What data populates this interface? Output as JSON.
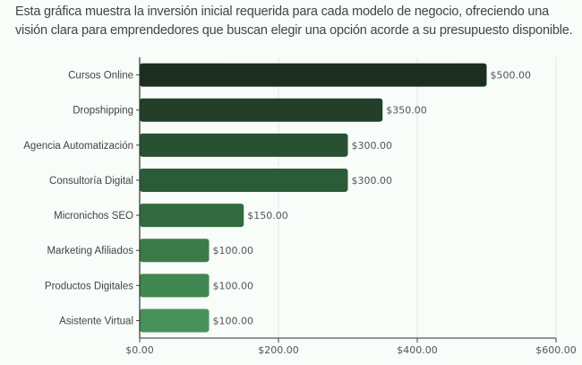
{
  "description": "Esta gráfica muestra la inversión inicial requerida para cada modelo de negocio, ofreciendo una visión clara para emprendedores que buscan elegir una opción acorde a su presupuesto disponible.",
  "chart_data": {
    "type": "bar",
    "orientation": "horizontal",
    "categories": [
      "Cursos Online",
      "Dropshipping",
      "Agencia Automatización",
      "Consultoría Digital",
      "Micronichos SEO",
      "Marketing Afiliados",
      "Productos Digitales",
      "Asistente Virtual"
    ],
    "values": [
      500,
      350,
      300,
      300,
      150,
      100,
      100,
      100
    ],
    "data_labels": [
      "$500.00",
      "$350.00",
      "$300.00",
      "$300.00",
      "$150.00",
      "$100.00",
      "$100.00",
      "$100.00"
    ],
    "xlim": [
      0,
      600
    ],
    "xticks": [
      0,
      200,
      400,
      600
    ],
    "xtick_labels": [
      "$0.00",
      "$200.00",
      "$400.00",
      "$600.00"
    ],
    "grid": "vertical",
    "colors": [
      "#1b2e20",
      "#223f29",
      "#285032",
      "#2c5b37",
      "#336a3f",
      "#3b7b4a",
      "#418751",
      "#47925a"
    ]
  }
}
